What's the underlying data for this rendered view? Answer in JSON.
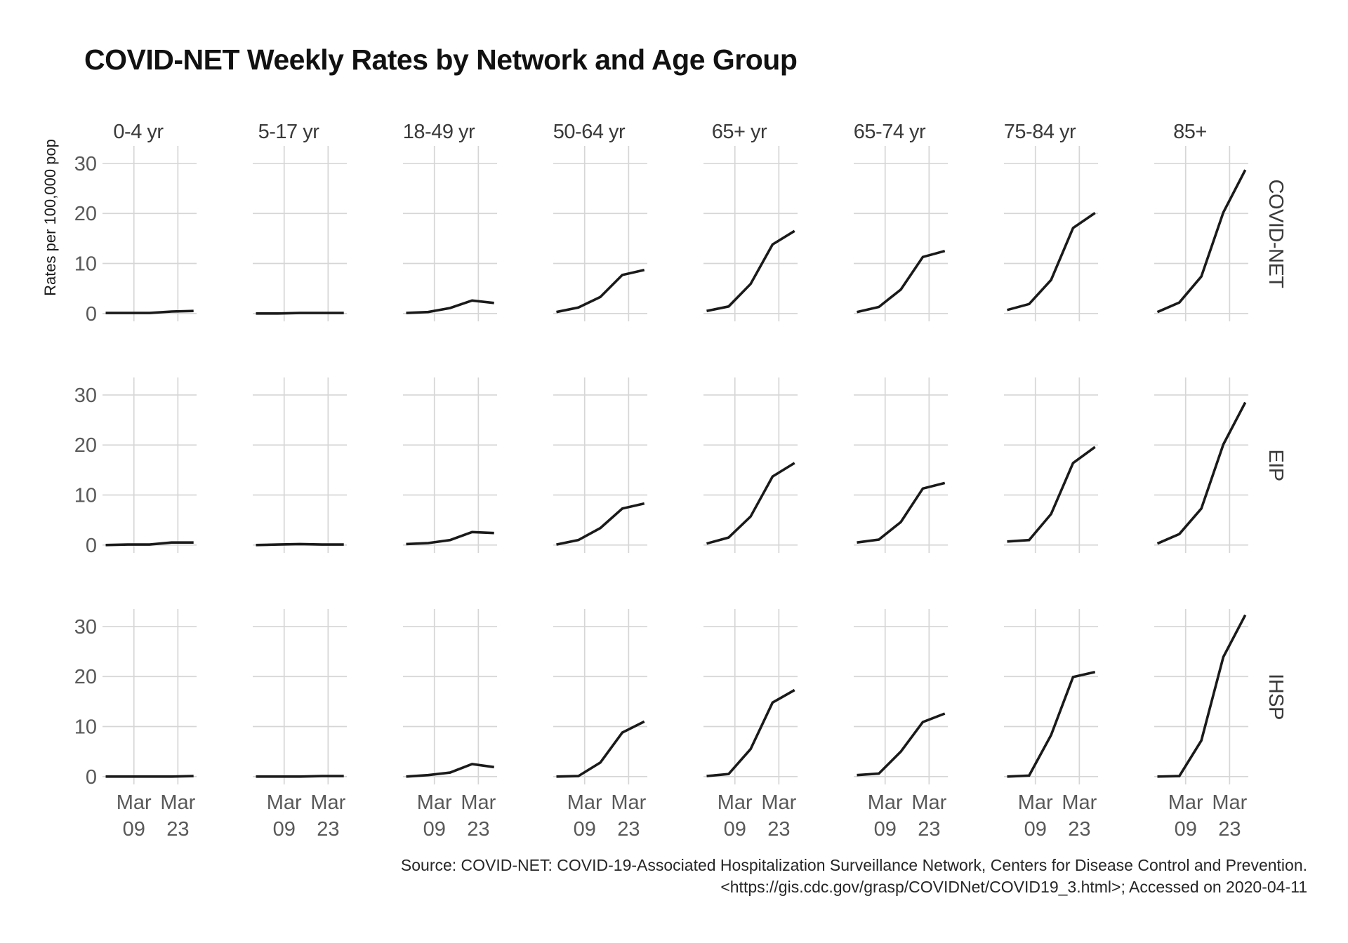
{
  "title": "COVID-NET Weekly Rates by Network and Age Group",
  "y_axis_title": "Rates per 100,000 pop",
  "source": {
    "line1": "Source: COVID-NET: COVID-19-Associated Hospitalization Surveillance Network, Centers for Disease Control and Prevention.",
    "line2": "<https://gis.cdc.gov/grasp/COVIDNet/COVID19_3.html>; Accessed on 2020-04-11"
  },
  "colors": {
    "line": "#1a1a1a",
    "grid": "#d6d6d6",
    "tick_label": "#595959",
    "facet_label": "#3a3a3a",
    "title_text": "#111111",
    "source_text": "#262626",
    "background": "#ffffff"
  },
  "chart_data": {
    "type": "line",
    "title": "COVID-NET Weekly Rates by Network and Age Group",
    "ylabel": "Rates per 100,000 pop",
    "grid": true,
    "ylim": [
      0,
      30
    ],
    "yticks": [
      0,
      10,
      20,
      30
    ],
    "facet_rows": [
      "COVID-NET",
      "EIP",
      "IHSP"
    ],
    "facet_columns": [
      "0-4 yr",
      "5-17 yr",
      "18-49 yr",
      "50-64 yr",
      "65+ yr",
      "65-74 yr",
      "75-84 yr",
      "85+"
    ],
    "x": [
      "Feb 29",
      "Mar 07",
      "Mar 14",
      "Mar 21",
      "Mar 28"
    ],
    "x_days": [
      0,
      7,
      14,
      21,
      28
    ],
    "x_ticks": [
      {
        "day": 9,
        "label_top": "Mar",
        "label_bottom": "09"
      },
      {
        "day": 23,
        "label_top": "Mar",
        "label_bottom": "23"
      }
    ],
    "series": [
      {
        "network": "COVID-NET",
        "age_group": "0-4 yr",
        "values": [
          0.1,
          0.1,
          0.1,
          0.4,
          0.5
        ]
      },
      {
        "network": "COVID-NET",
        "age_group": "5-17 yr",
        "values": [
          0.0,
          0.0,
          0.1,
          0.1,
          0.1
        ]
      },
      {
        "network": "COVID-NET",
        "age_group": "18-49 yr",
        "values": [
          0.1,
          0.3,
          1.1,
          2.6,
          2.1
        ]
      },
      {
        "network": "COVID-NET",
        "age_group": "50-64 yr",
        "values": [
          0.3,
          1.2,
          3.3,
          7.7,
          8.7
        ]
      },
      {
        "network": "COVID-NET",
        "age_group": "65+ yr",
        "values": [
          0.5,
          1.4,
          5.9,
          13.8,
          16.5
        ]
      },
      {
        "network": "COVID-NET",
        "age_group": "65-74 yr",
        "values": [
          0.3,
          1.3,
          4.8,
          11.3,
          12.5
        ]
      },
      {
        "network": "COVID-NET",
        "age_group": "75-84 yr",
        "values": [
          0.7,
          1.9,
          6.7,
          17.1,
          20.1
        ]
      },
      {
        "network": "COVID-NET",
        "age_group": "85+",
        "values": [
          0.3,
          2.2,
          7.4,
          20.2,
          28.7
        ]
      },
      {
        "network": "EIP",
        "age_group": "0-4 yr",
        "values": [
          0.0,
          0.1,
          0.1,
          0.5,
          0.5
        ]
      },
      {
        "network": "EIP",
        "age_group": "5-17 yr",
        "values": [
          0.0,
          0.1,
          0.2,
          0.1,
          0.1
        ]
      },
      {
        "network": "EIP",
        "age_group": "18-49 yr",
        "values": [
          0.2,
          0.4,
          1.0,
          2.6,
          2.4
        ]
      },
      {
        "network": "EIP",
        "age_group": "50-64 yr",
        "values": [
          0.1,
          1.0,
          3.4,
          7.3,
          8.3
        ]
      },
      {
        "network": "EIP",
        "age_group": "65+ yr",
        "values": [
          0.3,
          1.5,
          5.7,
          13.7,
          16.4
        ]
      },
      {
        "network": "EIP",
        "age_group": "65-74 yr",
        "values": [
          0.5,
          1.1,
          4.6,
          11.3,
          12.4
        ]
      },
      {
        "network": "EIP",
        "age_group": "75-84 yr",
        "values": [
          0.7,
          1.0,
          6.2,
          16.4,
          19.6
        ]
      },
      {
        "network": "EIP",
        "age_group": "85+",
        "values": [
          0.3,
          2.2,
          7.3,
          20.1,
          28.5
        ]
      },
      {
        "network": "IHSP",
        "age_group": "0-4 yr",
        "values": [
          0.0,
          0.0,
          0.0,
          0.0,
          0.1
        ]
      },
      {
        "network": "IHSP",
        "age_group": "5-17 yr",
        "values": [
          0.0,
          0.0,
          0.0,
          0.1,
          0.1
        ]
      },
      {
        "network": "IHSP",
        "age_group": "18-49 yr",
        "values": [
          0.0,
          0.3,
          0.8,
          2.5,
          1.9
        ]
      },
      {
        "network": "IHSP",
        "age_group": "50-64 yr",
        "values": [
          0.0,
          0.1,
          2.8,
          8.8,
          11.0
        ]
      },
      {
        "network": "IHSP",
        "age_group": "65+ yr",
        "values": [
          0.1,
          0.5,
          5.5,
          14.8,
          17.3
        ]
      },
      {
        "network": "IHSP",
        "age_group": "65-74 yr",
        "values": [
          0.3,
          0.6,
          5.0,
          10.9,
          12.6
        ]
      },
      {
        "network": "IHSP",
        "age_group": "75-84 yr",
        "values": [
          0.0,
          0.2,
          8.3,
          19.9,
          20.9
        ]
      },
      {
        "network": "IHSP",
        "age_group": "85+",
        "values": [
          0.0,
          0.1,
          7.2,
          23.9,
          32.3
        ]
      }
    ]
  }
}
